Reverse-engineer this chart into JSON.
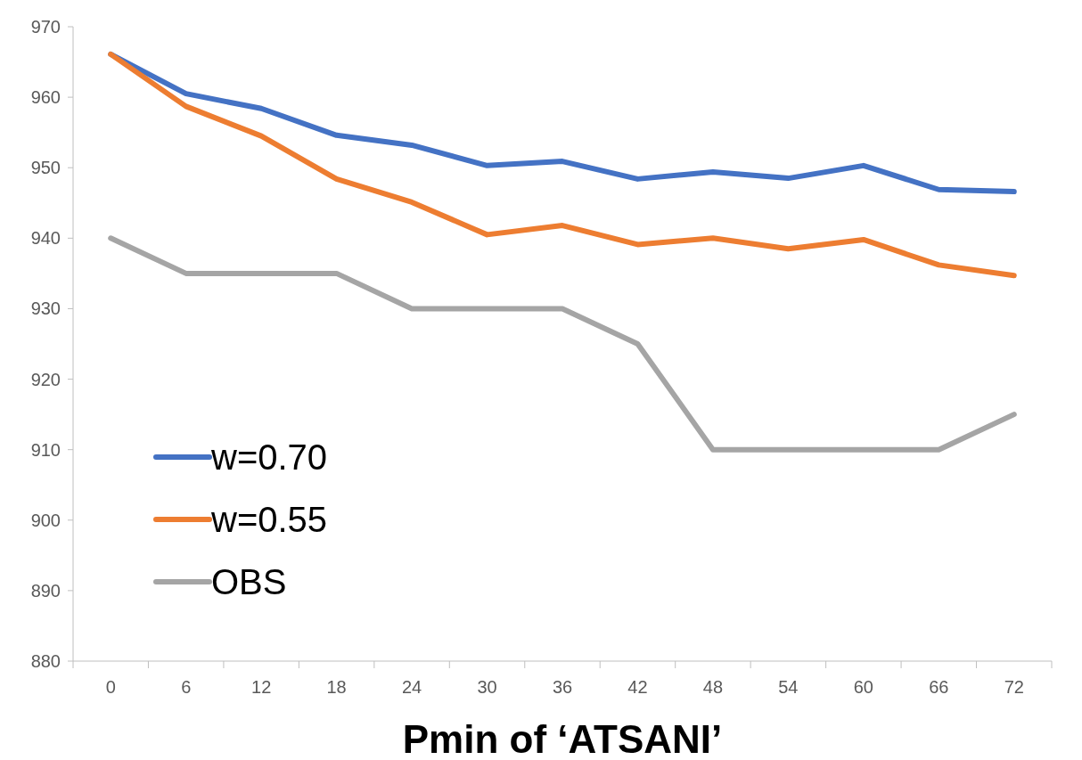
{
  "chart_data": {
    "type": "line",
    "xlabel": "Pmin of ‘ATSANI’",
    "categories": [
      "0",
      "6",
      "12",
      "18",
      "24",
      "30",
      "36",
      "42",
      "48",
      "54",
      "60",
      "66",
      "72"
    ],
    "series": [
      {
        "name": "w=0.70",
        "color": "#4472c4",
        "values": [
          966.1,
          960.5,
          958.4,
          954.6,
          953.2,
          950.3,
          950.9,
          948.4,
          949.4,
          948.5,
          950.3,
          946.9,
          946.6
        ]
      },
      {
        "name": "w=0.55",
        "color": "#ed7d31",
        "values": [
          966.1,
          958.7,
          954.5,
          948.4,
          945.1,
          940.5,
          941.8,
          939.1,
          940.0,
          938.5,
          939.8,
          936.2,
          934.7
        ]
      },
      {
        "name": "OBS",
        "color": "#a5a5a5",
        "values": [
          940,
          935,
          935,
          935,
          930,
          930,
          930,
          925,
          910,
          910,
          910,
          910,
          915
        ]
      }
    ],
    "ylim": [
      880,
      970
    ],
    "yticks": [
      880,
      890,
      900,
      910,
      920,
      930,
      940,
      950,
      960,
      970
    ],
    "grid": false,
    "legend": "left",
    "marker": "none",
    "line_style": "solid"
  }
}
